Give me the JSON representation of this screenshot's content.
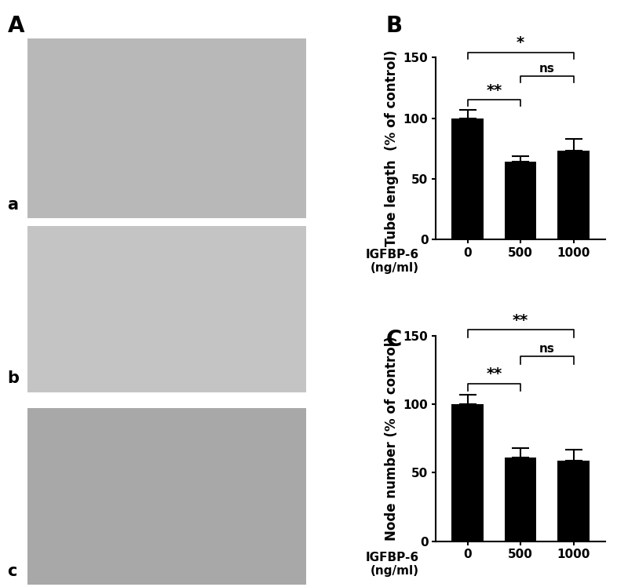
{
  "images": {
    "panel_label": "A",
    "labels": [
      "a",
      "b",
      "c"
    ]
  },
  "chart_data": [
    {
      "type": "bar",
      "panel_label": "B",
      "y_label": "Tube length  (% of control)",
      "x_label": "IGFBP-6\n(ng/ml)",
      "categories": [
        "0",
        "500",
        "1000"
      ],
      "values": [
        100,
        64,
        73
      ],
      "errors": [
        7,
        5,
        10
      ],
      "color": "#000000",
      "ylim": [
        0,
        150
      ],
      "yticks": [
        0,
        50,
        100,
        150
      ],
      "comparisons": [
        {
          "from": "0",
          "to": "500",
          "label": "**"
        },
        {
          "from": "0",
          "to": "1000",
          "label": "*"
        },
        {
          "from": "500",
          "to": "1000",
          "label": "ns"
        }
      ]
    },
    {
      "type": "bar",
      "panel_label": "C",
      "y_label": "Node number (% of control)",
      "x_label": "IGFBP-6\n(ng/ml)",
      "categories": [
        "0",
        "500",
        "1000"
      ],
      "values": [
        100,
        61,
        59
      ],
      "errors": [
        7,
        7,
        8
      ],
      "color": "#000000",
      "ylim": [
        0,
        150
      ],
      "yticks": [
        0,
        50,
        100,
        150
      ],
      "comparisons": [
        {
          "from": "0",
          "to": "500",
          "label": "**"
        },
        {
          "from": "0",
          "to": "1000",
          "label": "**"
        },
        {
          "from": "500",
          "to": "1000",
          "label": "ns"
        }
      ]
    }
  ]
}
